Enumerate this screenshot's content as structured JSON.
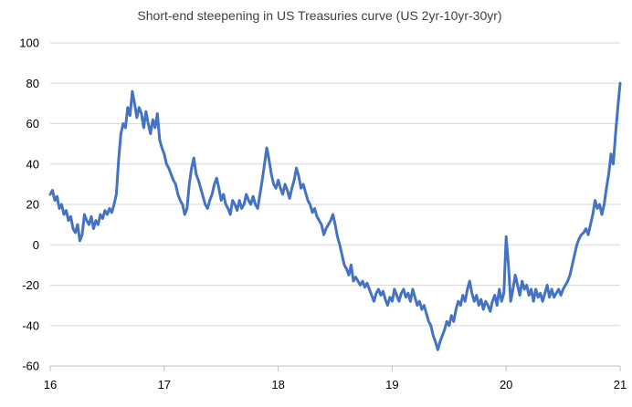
{
  "chart_data": {
    "type": "line",
    "title": "Short-end steepening in US Treasuries curve (US 2yr-10yr-30yr)",
    "xlabel": "",
    "ylabel": "",
    "xlim": [
      16,
      21
    ],
    "ylim": [
      -60,
      100
    ],
    "x_ticks": [
      {
        "value": 16,
        "label": "16"
      },
      {
        "value": 17,
        "label": "17"
      },
      {
        "value": 18,
        "label": "18"
      },
      {
        "value": 19,
        "label": "19"
      },
      {
        "value": 20,
        "label": "20"
      },
      {
        "value": 21,
        "label": "21"
      }
    ],
    "y_ticks": [
      {
        "value": 100,
        "label": "100"
      },
      {
        "value": 80,
        "label": "80"
      },
      {
        "value": 60,
        "label": "60"
      },
      {
        "value": 40,
        "label": "40"
      },
      {
        "value": 20,
        "label": "20"
      },
      {
        "value": 0,
        "label": "0"
      },
      {
        "value": -20,
        "label": "-20"
      },
      {
        "value": -40,
        "label": "-40"
      },
      {
        "value": -60,
        "label": "-60"
      }
    ],
    "grid": "horizontal",
    "legend": "none",
    "series": [
      {
        "color": "#4472c4",
        "points": [
          [
            16.0,
            25
          ],
          [
            16.02,
            27
          ],
          [
            16.04,
            22
          ],
          [
            16.06,
            24
          ],
          [
            16.08,
            18
          ],
          [
            16.1,
            20
          ],
          [
            16.12,
            15
          ],
          [
            16.14,
            17
          ],
          [
            16.16,
            12
          ],
          [
            16.18,
            14
          ],
          [
            16.2,
            8
          ],
          [
            16.22,
            6
          ],
          [
            16.24,
            10
          ],
          [
            16.26,
            2
          ],
          [
            16.28,
            5
          ],
          [
            16.3,
            15
          ],
          [
            16.32,
            12
          ],
          [
            16.34,
            10
          ],
          [
            16.36,
            14
          ],
          [
            16.38,
            8
          ],
          [
            16.4,
            12
          ],
          [
            16.42,
            10
          ],
          [
            16.44,
            15
          ],
          [
            16.46,
            13
          ],
          [
            16.48,
            17
          ],
          [
            16.5,
            15
          ],
          [
            16.52,
            18
          ],
          [
            16.54,
            16
          ],
          [
            16.56,
            20
          ],
          [
            16.58,
            25
          ],
          [
            16.6,
            42
          ],
          [
            16.62,
            55
          ],
          [
            16.64,
            60
          ],
          [
            16.66,
            58
          ],
          [
            16.68,
            68
          ],
          [
            16.7,
            64
          ],
          [
            16.72,
            76
          ],
          [
            16.74,
            70
          ],
          [
            16.76,
            63
          ],
          [
            16.78,
            68
          ],
          [
            16.8,
            65
          ],
          [
            16.82,
            58
          ],
          [
            16.84,
            66
          ],
          [
            16.86,
            60
          ],
          [
            16.88,
            55
          ],
          [
            16.9,
            62
          ],
          [
            16.92,
            58
          ],
          [
            16.94,
            65
          ],
          [
            16.96,
            52
          ],
          [
            16.98,
            48
          ],
          [
            17.0,
            45
          ],
          [
            17.02,
            40
          ],
          [
            17.04,
            38
          ],
          [
            17.06,
            35
          ],
          [
            17.08,
            32
          ],
          [
            17.1,
            30
          ],
          [
            17.12,
            25
          ],
          [
            17.14,
            22
          ],
          [
            17.16,
            20
          ],
          [
            17.18,
            15
          ],
          [
            17.2,
            18
          ],
          [
            17.22,
            30
          ],
          [
            17.24,
            38
          ],
          [
            17.26,
            43
          ],
          [
            17.28,
            35
          ],
          [
            17.3,
            32
          ],
          [
            17.32,
            28
          ],
          [
            17.34,
            24
          ],
          [
            17.36,
            20
          ],
          [
            17.38,
            18
          ],
          [
            17.4,
            22
          ],
          [
            17.42,
            25
          ],
          [
            17.44,
            30
          ],
          [
            17.46,
            33
          ],
          [
            17.48,
            28
          ],
          [
            17.5,
            22
          ],
          [
            17.52,
            25
          ],
          [
            17.54,
            20
          ],
          [
            17.56,
            18
          ],
          [
            17.58,
            15
          ],
          [
            17.6,
            22
          ],
          [
            17.62,
            20
          ],
          [
            17.64,
            17
          ],
          [
            17.66,
            22
          ],
          [
            17.68,
            18
          ],
          [
            17.7,
            20
          ],
          [
            17.72,
            25
          ],
          [
            17.74,
            22
          ],
          [
            17.76,
            20
          ],
          [
            17.78,
            24
          ],
          [
            17.8,
            20
          ],
          [
            17.82,
            18
          ],
          [
            17.84,
            25
          ],
          [
            17.86,
            32
          ],
          [
            17.88,
            40
          ],
          [
            17.9,
            48
          ],
          [
            17.92,
            42
          ],
          [
            17.94,
            35
          ],
          [
            17.96,
            30
          ],
          [
            17.98,
            28
          ],
          [
            18.0,
            32
          ],
          [
            18.02,
            28
          ],
          [
            18.04,
            25
          ],
          [
            18.06,
            30
          ],
          [
            18.08,
            27
          ],
          [
            18.1,
            23
          ],
          [
            18.12,
            28
          ],
          [
            18.14,
            32
          ],
          [
            18.16,
            38
          ],
          [
            18.18,
            34
          ],
          [
            18.2,
            28
          ],
          [
            18.22,
            30
          ],
          [
            18.24,
            26
          ],
          [
            18.26,
            22
          ],
          [
            18.28,
            20
          ],
          [
            18.3,
            16
          ],
          [
            18.32,
            18
          ],
          [
            18.34,
            14
          ],
          [
            18.36,
            12
          ],
          [
            18.38,
            10
          ],
          [
            18.4,
            5
          ],
          [
            18.42,
            8
          ],
          [
            18.44,
            10
          ],
          [
            18.46,
            12
          ],
          [
            18.48,
            15
          ],
          [
            18.5,
            10
          ],
          [
            18.52,
            4
          ],
          [
            18.54,
            0
          ],
          [
            18.56,
            -5
          ],
          [
            18.58,
            -10
          ],
          [
            18.6,
            -12
          ],
          [
            18.62,
            -15
          ],
          [
            18.64,
            -10
          ],
          [
            18.66,
            -18
          ],
          [
            18.68,
            -16
          ],
          [
            18.7,
            -18
          ],
          [
            18.72,
            -20
          ],
          [
            18.74,
            -18
          ],
          [
            18.76,
            -21
          ],
          [
            18.78,
            -19
          ],
          [
            18.8,
            -22
          ],
          [
            18.82,
            -25
          ],
          [
            18.84,
            -28
          ],
          [
            18.86,
            -24
          ],
          [
            18.88,
            -22
          ],
          [
            18.9,
            -25
          ],
          [
            18.92,
            -23
          ],
          [
            18.94,
            -27
          ],
          [
            18.96,
            -30
          ],
          [
            18.98,
            -26
          ],
          [
            19.0,
            -28
          ],
          [
            19.02,
            -22
          ],
          [
            19.04,
            -25
          ],
          [
            19.06,
            -28
          ],
          [
            19.08,
            -24
          ],
          [
            19.1,
            -22
          ],
          [
            19.12,
            -26
          ],
          [
            19.14,
            -24
          ],
          [
            19.16,
            -28
          ],
          [
            19.18,
            -22
          ],
          [
            19.2,
            -26
          ],
          [
            19.22,
            -30
          ],
          [
            19.24,
            -28
          ],
          [
            19.26,
            -32
          ],
          [
            19.28,
            -30
          ],
          [
            19.3,
            -34
          ],
          [
            19.32,
            -38
          ],
          [
            19.34,
            -40
          ],
          [
            19.36,
            -45
          ],
          [
            19.38,
            -48
          ],
          [
            19.4,
            -52
          ],
          [
            19.42,
            -48
          ],
          [
            19.44,
            -45
          ],
          [
            19.46,
            -42
          ],
          [
            19.48,
            -38
          ],
          [
            19.5,
            -40
          ],
          [
            19.52,
            -35
          ],
          [
            19.54,
            -38
          ],
          [
            19.56,
            -32
          ],
          [
            19.58,
            -28
          ],
          [
            19.6,
            -30
          ],
          [
            19.62,
            -25
          ],
          [
            19.64,
            -28
          ],
          [
            19.66,
            -22
          ],
          [
            19.68,
            -18
          ],
          [
            19.7,
            -24
          ],
          [
            19.72,
            -28
          ],
          [
            19.74,
            -25
          ],
          [
            19.76,
            -30
          ],
          [
            19.78,
            -27
          ],
          [
            19.8,
            -32
          ],
          [
            19.82,
            -28
          ],
          [
            19.84,
            -30
          ],
          [
            19.86,
            -33
          ],
          [
            19.88,
            -28
          ],
          [
            19.9,
            -25
          ],
          [
            19.92,
            -30
          ],
          [
            19.94,
            -22
          ],
          [
            19.96,
            -28
          ],
          [
            19.98,
            -24
          ],
          [
            20.0,
            4
          ],
          [
            20.02,
            -10
          ],
          [
            20.04,
            -28
          ],
          [
            20.06,
            -22
          ],
          [
            20.08,
            -15
          ],
          [
            20.1,
            -20
          ],
          [
            20.12,
            -25
          ],
          [
            20.14,
            -18
          ],
          [
            20.16,
            -22
          ],
          [
            20.18,
            -20
          ],
          [
            20.2,
            -25
          ],
          [
            20.22,
            -22
          ],
          [
            20.24,
            -28
          ],
          [
            20.26,
            -22
          ],
          [
            20.28,
            -26
          ],
          [
            20.3,
            -24
          ],
          [
            20.32,
            -28
          ],
          [
            20.34,
            -24
          ],
          [
            20.36,
            -20
          ],
          [
            20.38,
            -26
          ],
          [
            20.4,
            -22
          ],
          [
            20.42,
            -26
          ],
          [
            20.44,
            -24
          ],
          [
            20.46,
            -22
          ],
          [
            20.48,
            -25
          ],
          [
            20.5,
            -22
          ],
          [
            20.52,
            -20
          ],
          [
            20.54,
            -18
          ],
          [
            20.56,
            -15
          ],
          [
            20.58,
            -10
          ],
          [
            20.6,
            -5
          ],
          [
            20.62,
            0
          ],
          [
            20.64,
            3
          ],
          [
            20.66,
            5
          ],
          [
            20.68,
            6
          ],
          [
            20.7,
            8
          ],
          [
            20.72,
            5
          ],
          [
            20.74,
            10
          ],
          [
            20.76,
            15
          ],
          [
            20.78,
            22
          ],
          [
            20.8,
            18
          ],
          [
            20.82,
            20
          ],
          [
            20.84,
            15
          ],
          [
            20.86,
            20
          ],
          [
            20.88,
            28
          ],
          [
            20.9,
            35
          ],
          [
            20.92,
            45
          ],
          [
            20.94,
            40
          ],
          [
            20.96,
            55
          ],
          [
            20.98,
            68
          ],
          [
            21.0,
            80
          ]
        ]
      }
    ]
  }
}
